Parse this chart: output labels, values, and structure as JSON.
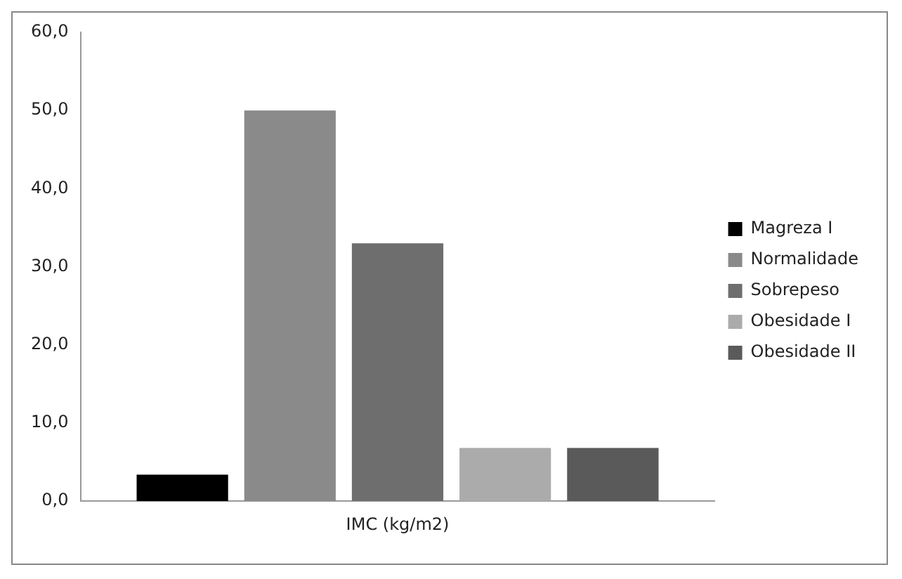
{
  "chart_data": {
    "type": "bar",
    "categories": [
      "IMC (kg/m2)"
    ],
    "series": [
      {
        "name": "Magreza I",
        "color": "#000000",
        "values": [
          3.4
        ]
      },
      {
        "name": "Normalidade",
        "color": "#8a8a8a",
        "values": [
          50.0
        ]
      },
      {
        "name": "Sobrepeso",
        "color": "#6e6e6e",
        "values": [
          33.0
        ]
      },
      {
        "name": "Obesidade I",
        "color": "#ababab",
        "values": [
          6.8
        ]
      },
      {
        "name": "Obesidade II",
        "color": "#5a5a5a",
        "values": [
          6.8
        ]
      }
    ],
    "ylim": [
      0,
      60
    ],
    "yticks": [
      {
        "value": 0,
        "label": "0,0"
      },
      {
        "value": 10,
        "label": "10,0"
      },
      {
        "value": 20,
        "label": "20,0"
      },
      {
        "value": 30,
        "label": "30,0"
      },
      {
        "value": 40,
        "label": "40,0"
      },
      {
        "value": 50,
        "label": "50,0"
      },
      {
        "value": 60,
        "label": "60,0"
      }
    ],
    "grid": false,
    "legend": "right"
  }
}
